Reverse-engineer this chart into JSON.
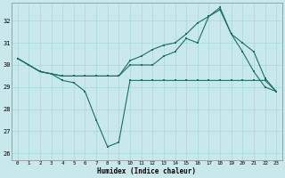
{
  "background_color": "#c8e8ec",
  "grid_color": "#b0d8dc",
  "line_color": "#1a6e64",
  "xlabel": "Humidex (Indice chaleur)",
  "xlim": [
    -0.5,
    23.5
  ],
  "ylim": [
    25.7,
    32.8
  ],
  "yticks": [
    26,
    27,
    28,
    29,
    30,
    31,
    32
  ],
  "x_ticks": [
    0,
    1,
    2,
    3,
    4,
    5,
    6,
    7,
    8,
    9,
    10,
    11,
    12,
    13,
    14,
    15,
    16,
    17,
    18,
    19,
    20,
    21,
    22,
    23
  ],
  "s1_x": [
    0,
    1,
    2,
    3,
    4,
    5,
    6,
    7,
    8,
    9,
    10,
    11,
    12,
    13,
    14,
    15,
    16,
    17,
    18,
    19,
    20,
    21,
    22,
    23
  ],
  "s1_y": [
    30.3,
    30.0,
    29.7,
    29.6,
    29.3,
    29.2,
    28.8,
    27.5,
    26.3,
    26.5,
    29.3,
    29.3,
    29.3,
    29.3,
    29.3,
    29.3,
    29.3,
    29.3,
    29.3,
    29.3,
    29.3,
    29.3,
    29.3,
    28.8
  ],
  "s2_x": [
    0,
    1,
    2,
    3,
    4,
    5,
    6,
    7,
    8,
    9,
    10,
    11,
    12,
    13,
    14,
    15,
    16,
    17,
    18,
    19,
    20,
    21,
    22,
    23
  ],
  "s2_y": [
    30.3,
    30.0,
    29.7,
    29.6,
    29.5,
    29.5,
    29.5,
    29.5,
    29.5,
    29.5,
    30.2,
    30.4,
    30.7,
    30.9,
    31.0,
    31.4,
    31.9,
    32.2,
    32.5,
    31.4,
    30.6,
    29.7,
    29.0,
    28.8
  ],
  "s3_x": [
    0,
    1,
    2,
    3,
    4,
    5,
    6,
    7,
    8,
    9,
    10,
    11,
    12,
    13,
    14,
    15,
    16,
    17,
    18,
    19,
    20,
    21,
    22,
    23
  ],
  "s3_y": [
    30.3,
    30.0,
    29.7,
    29.6,
    29.5,
    29.5,
    29.5,
    29.5,
    29.5,
    29.5,
    30.0,
    30.0,
    30.0,
    30.4,
    30.6,
    31.2,
    31.0,
    32.2,
    32.6,
    31.4,
    31.0,
    30.6,
    29.4,
    28.8
  ]
}
